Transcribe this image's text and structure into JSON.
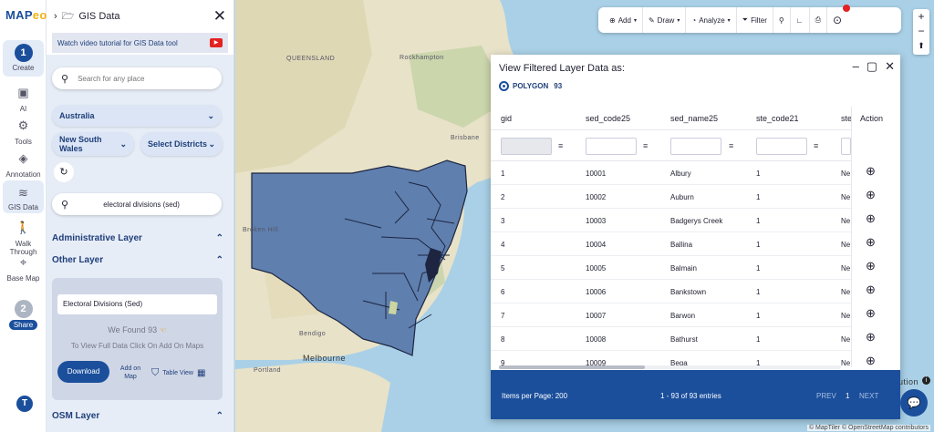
{
  "brand": {
    "logo_main": "MAP",
    "logo_accent": "eo"
  },
  "rail": {
    "items": [
      {
        "label": "Create",
        "step": "1"
      },
      {
        "label": "AI"
      },
      {
        "label": "Tools"
      },
      {
        "label": "Annotation"
      },
      {
        "label": "GIS Data"
      },
      {
        "label": "Walk Through"
      },
      {
        "label": "Base Map"
      },
      {
        "label": "Share",
        "step": "2"
      }
    ],
    "user_initial": "T"
  },
  "panel": {
    "title": "GIS Data",
    "video_text": "Watch video tutorial for GIS Data tool",
    "search_placeholder": "Search for any place",
    "country": "Australia",
    "state": "New South Wales",
    "district_select": "Select Districts",
    "layer_search_value": "electoral divisions (sed)",
    "admin_layer": "Administrative Layer",
    "other_layer": "Other Layer",
    "osm_layer": "OSM Layer",
    "card": {
      "title": "Electoral Divisions (Sed)",
      "found": "We Found  93",
      "hint": "To View Full Data Click On Add On Maps",
      "download": "Download",
      "add_on_map": "Add on Map",
      "table_view": "Table View"
    }
  },
  "map": {
    "labels": [
      "QUEENSLAND",
      "Rockhampton",
      "Brisbane",
      "Broken Hill",
      "Bendigo",
      "Melbourne",
      "Portland"
    ],
    "attribution": "© MapTiler © OpenStreetMap contributors",
    "cut_label": "ution"
  },
  "toolbar": {
    "add": "Add",
    "draw": "Draw",
    "analyze": "Analyze",
    "filter": "Filter"
  },
  "zoom": {
    "plus": "+",
    "minus": "−"
  },
  "dialog": {
    "title": "View Filtered Layer Data as:",
    "geometry": "POLYGON",
    "geometry_count": "93",
    "columns": [
      "gid",
      "sed_code25",
      "sed_name25",
      "ste_code21",
      "ste",
      "Action"
    ],
    "rows": [
      [
        "1",
        "10001",
        "Albury",
        "1",
        "Ne"
      ],
      [
        "2",
        "10002",
        "Auburn",
        "1",
        "Ne"
      ],
      [
        "3",
        "10003",
        "Badgerys Creek",
        "1",
        "Ne"
      ],
      [
        "4",
        "10004",
        "Ballina",
        "1",
        "Ne"
      ],
      [
        "5",
        "10005",
        "Balmain",
        "1",
        "Ne"
      ],
      [
        "6",
        "10006",
        "Bankstown",
        "1",
        "Ne"
      ],
      [
        "7",
        "10007",
        "Barwon",
        "1",
        "Ne"
      ],
      [
        "8",
        "10008",
        "Bathurst",
        "1",
        "Ne"
      ],
      [
        "9",
        "10009",
        "Bega",
        "1",
        "Ne"
      ]
    ],
    "footer": {
      "per_page": "Items per Page: 200",
      "entries": "1 - 93 of 93 entries",
      "prev": "PREV",
      "page": "1",
      "next": "NEXT"
    }
  },
  "colors": {
    "brand": "#1b4f9c",
    "polygon_fill": "#5f7fae"
  }
}
